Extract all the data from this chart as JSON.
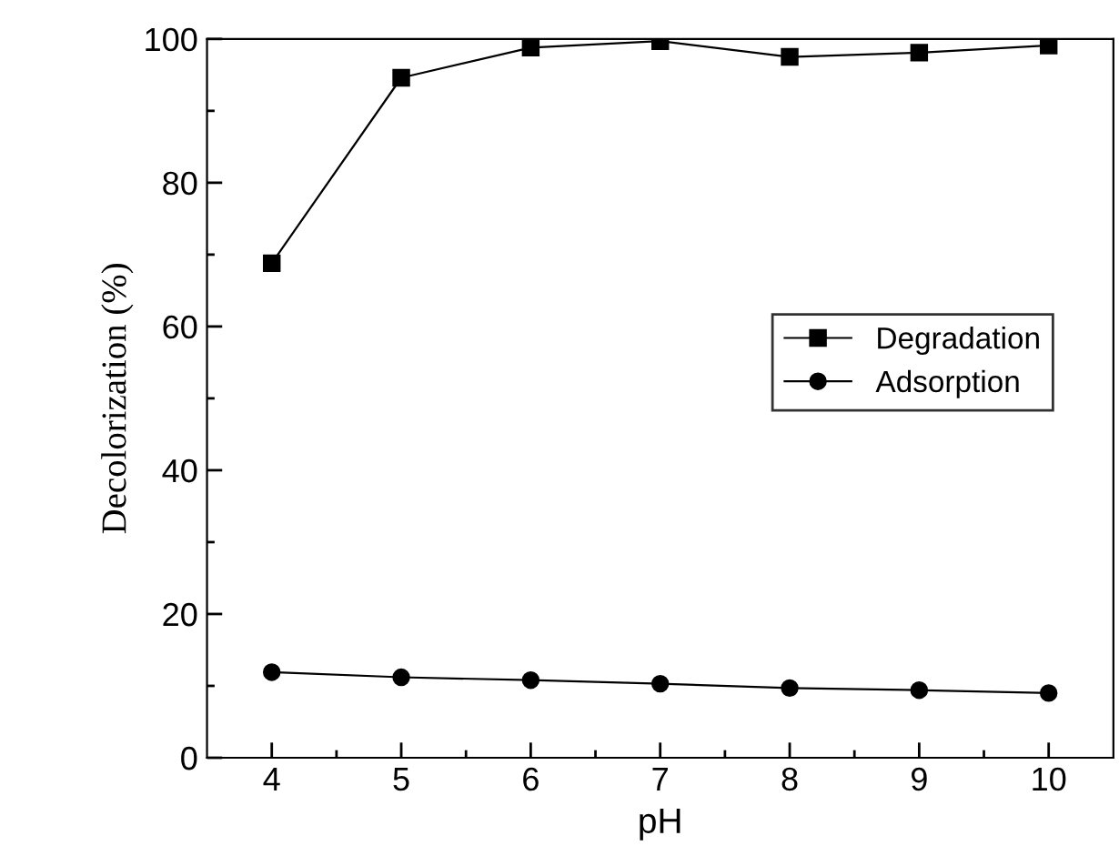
{
  "chart_data": {
    "type": "line",
    "xlabel": "pH",
    "ylabel": "Decolorization (%)",
    "x": [
      4,
      5,
      6,
      7,
      8,
      9,
      10
    ],
    "series": [
      {
        "name": "Degradation",
        "color": "#000000",
        "marker": "square",
        "values": [
          68.8,
          94.6,
          98.8,
          99.7,
          97.5,
          98.1,
          99.1
        ]
      },
      {
        "name": "Adsorption",
        "color": "#000000",
        "marker": "circle",
        "values": [
          11.9,
          11.2,
          10.8,
          10.3,
          9.7,
          9.4,
          9.0
        ]
      }
    ],
    "xlim": [
      3.5,
      10.5
    ],
    "ylim": [
      0,
      100
    ],
    "xticks": [
      4,
      {
        "value": 4.5,
        "label": null
      },
      5,
      {
        "value": 5.5,
        "label": null
      },
      6,
      {
        "value": 6.5,
        "label": null
      },
      7,
      {
        "value": 7.5,
        "label": null
      },
      8,
      {
        "value": 8.5,
        "label": null
      },
      9,
      {
        "value": 9.5,
        "label": null
      },
      10
    ],
    "yticks": [
      0,
      {
        "value": 10,
        "label": null
      },
      20,
      {
        "value": 30,
        "label": null
      },
      40,
      {
        "value": 50,
        "label": null
      },
      60,
      {
        "value": 70,
        "label": null
      },
      80,
      {
        "value": 90,
        "label": null
      },
      100
    ],
    "grid": false,
    "legend": "right",
    "line_style": "solid"
  }
}
